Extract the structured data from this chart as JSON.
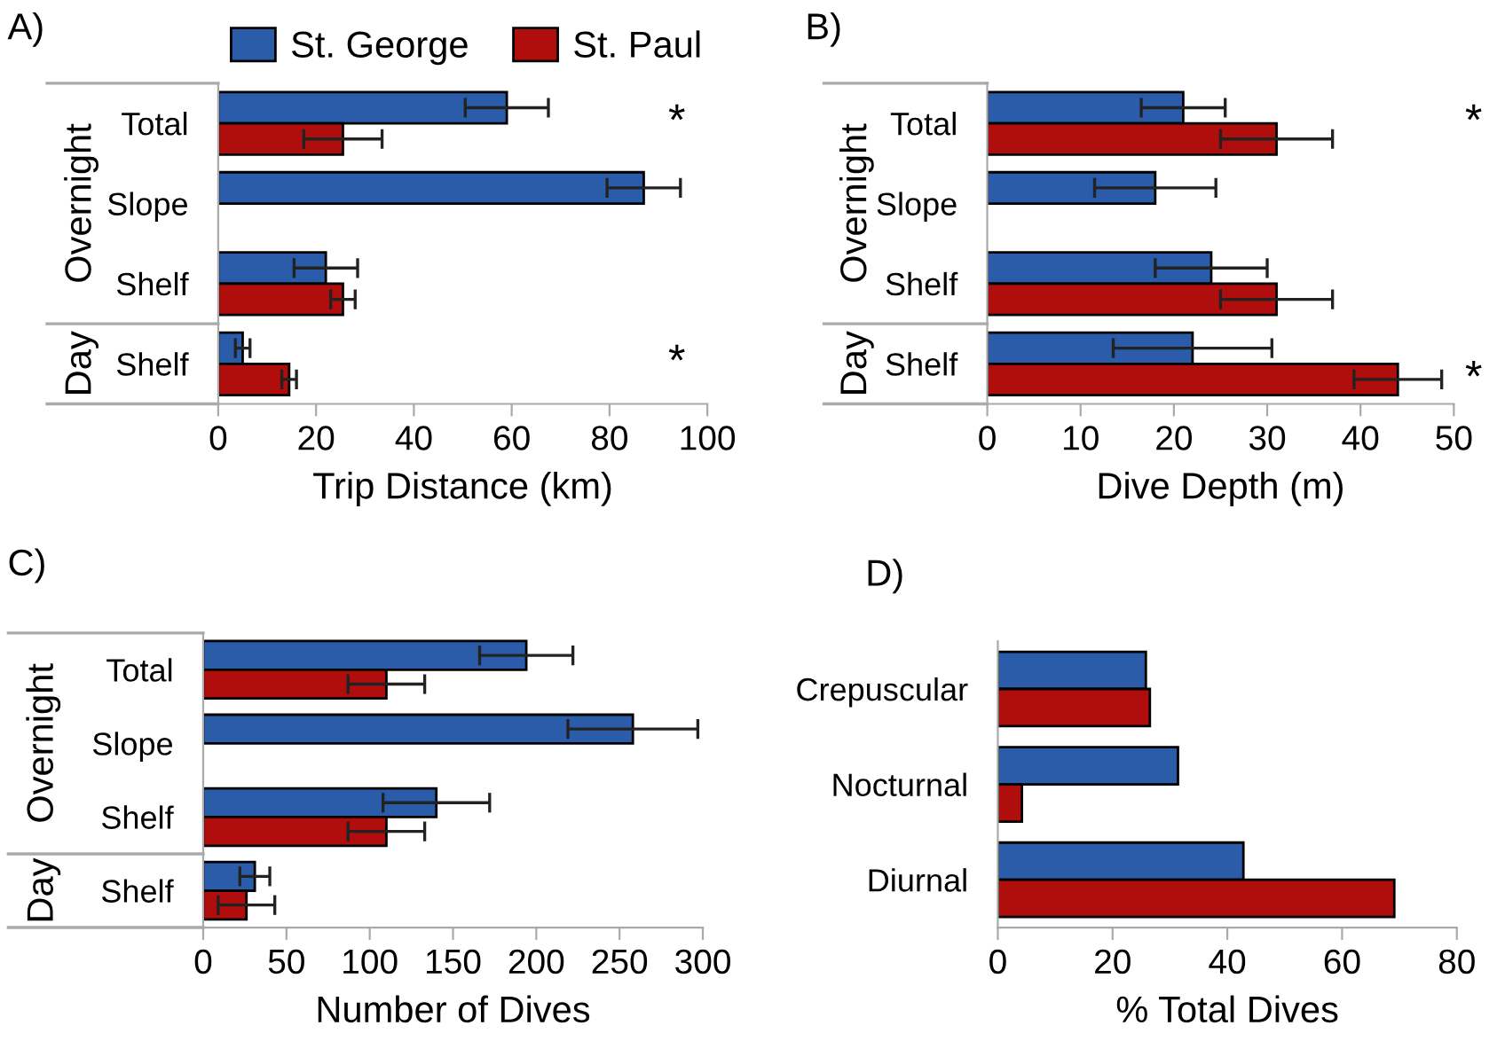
{
  "chart_data": [
    {
      "type": "bar",
      "orientation": "horizontal",
      "title": "A)",
      "xlabel": "Trip Distance (km)",
      "categories": [
        "Total",
        "Slope",
        "Shelf",
        "Shelf"
      ],
      "xlim": [
        0,
        100
      ],
      "xticks": [
        0,
        20,
        40,
        60,
        80,
        100
      ],
      "legend": "top",
      "grid": false,
      "series": [
        {
          "name": "St. George",
          "color": "#2a5caa",
          "values": [
            59,
            87,
            22,
            5
          ],
          "errors": [
            8.5,
            7.5,
            6.5,
            1.5
          ]
        },
        {
          "name": "St. Paul",
          "color": "#b00d0d",
          "values": [
            25.5,
            null,
            25.5,
            14.5
          ],
          "errors": [
            8,
            null,
            2.5,
            1.5
          ]
        }
      ],
      "annotations": [
        "Overnight",
        "Day",
        "*",
        "*"
      ]
    },
    {
      "type": "bar",
      "orientation": "horizontal",
      "title": "B)",
      "xlabel": "Dive Depth (m)",
      "categories": [
        "Total",
        "Slope",
        "Shelf",
        "Shelf"
      ],
      "xlim": [
        0,
        50
      ],
      "xticks": [
        0,
        10,
        20,
        30,
        40,
        50
      ],
      "grid": false,
      "series": [
        {
          "color": "#2a5caa",
          "values": [
            21,
            18,
            24,
            22
          ],
          "errors": [
            4.5,
            6.5,
            6,
            8.5
          ]
        },
        {
          "color": "#b00d0d",
          "values": [
            31,
            null,
            31,
            44
          ],
          "errors": [
            6,
            null,
            6,
            4.7
          ]
        }
      ],
      "annotations": [
        "Overnight",
        "Day",
        "*",
        "*"
      ]
    },
    {
      "type": "bar",
      "orientation": "horizontal",
      "title": "C)",
      "xlabel": "Number of Dives",
      "categories": [
        "Total",
        "Slope",
        "Shelf",
        "Shelf"
      ],
      "xlim": [
        0,
        300
      ],
      "xticks": [
        0,
        50,
        100,
        150,
        200,
        250,
        300
      ],
      "grid": false,
      "series": [
        {
          "color": "#2a5caa",
          "values": [
            194,
            258,
            140,
            31
          ],
          "errors": [
            28,
            39,
            32,
            9
          ]
        },
        {
          "color": "#b00d0d",
          "values": [
            110,
            null,
            110,
            26
          ],
          "errors": [
            23,
            null,
            23,
            17
          ]
        }
      ],
      "annotations": [
        "Overnight",
        "Day"
      ]
    },
    {
      "type": "bar",
      "orientation": "horizontal",
      "title": "D)",
      "xlabel": "% Total Dives",
      "categories": [
        "Crepuscular",
        "Nocturnal",
        "Diurnal"
      ],
      "xlim": [
        0,
        80
      ],
      "xticks": [
        0,
        20,
        40,
        60,
        80
      ],
      "grid": false,
      "series": [
        {
          "color": "#2a5caa",
          "values": [
            25.8,
            31.4,
            42.8
          ]
        },
        {
          "color": "#b00d0d",
          "values": [
            26.5,
            4.2,
            69.1
          ]
        }
      ]
    }
  ]
}
